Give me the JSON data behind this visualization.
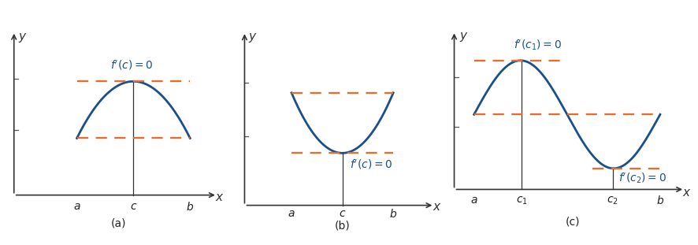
{
  "fig_width": 8.87,
  "fig_height": 3.11,
  "dpi": 100,
  "background_color": "#ffffff",
  "curve_color": "#1a4f8a",
  "dashed_color": "#e07030",
  "axis_color": "#555555",
  "text_color_blue": "#1a4f8a",
  "text_color_dark": "#222222",
  "curve_lw": 2.0,
  "dash_lw": 1.7,
  "panel_labels": [
    "(a)",
    "(b)",
    "(c)"
  ],
  "panel_label_fontsize": 10,
  "axis_label_fontsize": 11,
  "tick_label_fontsize": 10,
  "annotation_fontsize": 10,
  "panel_a": {
    "xlim": [
      0,
      5.0
    ],
    "ylim": [
      -0.8,
      4.5
    ],
    "a_val": 1.5,
    "b_val": 4.2,
    "c_val": 2.85,
    "y_max": 3.0,
    "y_ends": 1.5,
    "xticks": [
      1.5,
      2.85,
      4.2
    ],
    "xlabels": [
      "a",
      "c",
      "b"
    ]
  },
  "panel_b": {
    "xlim": [
      0,
      5.0
    ],
    "ylim": [
      -0.5,
      4.5
    ],
    "a_val": 1.2,
    "b_val": 3.8,
    "c_val": 2.5,
    "y_min": 1.3,
    "y_top": 2.8,
    "xticks": [
      1.2,
      2.5,
      3.8
    ],
    "xlabels": [
      "a",
      "c",
      "b"
    ]
  },
  "panel_c": {
    "xlim": [
      0,
      6.0
    ],
    "ylim": [
      -1.2,
      5.5
    ],
    "a_val": 0.5,
    "b_val": 5.2,
    "c1_val": 1.7,
    "c2_val": 4.0,
    "mid_val": 2.5,
    "amp": 1.8,
    "xticks": [
      0.5,
      1.7,
      4.0,
      5.2
    ],
    "xlabels": [
      "a",
      "c_1",
      "c_2",
      "b"
    ]
  }
}
